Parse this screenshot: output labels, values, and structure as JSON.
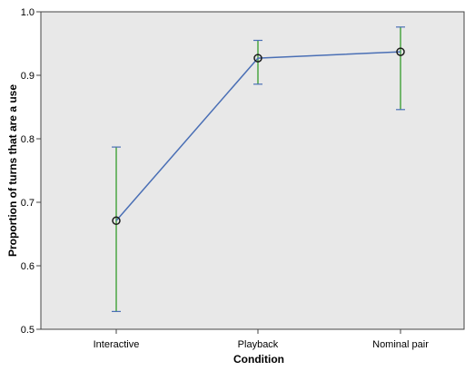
{
  "chart_data": {
    "type": "line",
    "title": "",
    "xlabel": "Condition",
    "ylabel": "Proportion of turns that are a use",
    "categories": [
      "Interactive",
      "Playback",
      "Nominal pair"
    ],
    "series": [
      {
        "values": [
          0.671,
          0.927,
          0.937
        ],
        "error_low": [
          0.528,
          0.886,
          0.846
        ],
        "error_high": [
          0.787,
          0.955,
          0.976
        ]
      }
    ],
    "ylim": [
      0.5,
      1.0
    ],
    "yticks": [
      0.5,
      0.6,
      0.7,
      0.8,
      0.9,
      1.0
    ],
    "ytick_labels": [
      "0.5",
      "0.6",
      "0.7",
      "0.8",
      "0.9",
      "1.0"
    ],
    "grid": false,
    "legend": "none",
    "colors": {
      "plot_background": "#e8e8e8",
      "line": "#4a6fb5",
      "error_bar": "#4aa542",
      "error_cap": "#4a6fb5",
      "marker": "#1a1a1a"
    }
  }
}
